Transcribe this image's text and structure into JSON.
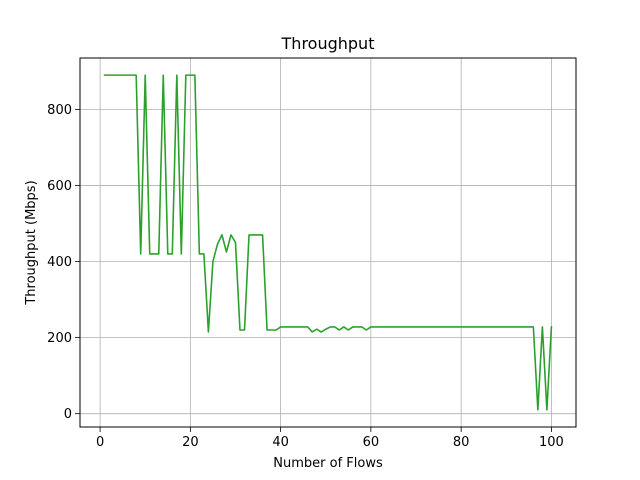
{
  "chart_data": {
    "type": "line",
    "title": "Throughput",
    "xlabel": "Number of Flows",
    "ylabel": "Throughput (Mbps)",
    "xlim": [
      -4.45,
      105.45
    ],
    "ylim": [
      -35,
      935
    ],
    "xticks": [
      0,
      20,
      40,
      60,
      80,
      100
    ],
    "yticks": [
      0,
      200,
      400,
      600,
      800
    ],
    "grid": true,
    "legend": "none",
    "series": [
      {
        "color": "#2ca02c",
        "x": [
          1,
          2,
          3,
          4,
          5,
          6,
          7,
          8,
          9,
          10,
          11,
          12,
          13,
          14,
          15,
          16,
          17,
          18,
          19,
          20,
          21,
          22,
          23,
          24,
          25,
          26,
          27,
          28,
          29,
          30,
          31,
          32,
          33,
          34,
          35,
          36,
          37,
          38,
          39,
          40,
          41,
          42,
          43,
          44,
          45,
          46,
          47,
          48,
          49,
          50,
          51,
          52,
          53,
          54,
          55,
          56,
          57,
          58,
          59,
          60,
          61,
          62,
          63,
          64,
          65,
          66,
          67,
          68,
          69,
          70,
          71,
          72,
          73,
          74,
          75,
          76,
          77,
          78,
          79,
          80,
          81,
          82,
          83,
          84,
          85,
          86,
          87,
          88,
          89,
          90,
          91,
          92,
          93,
          94,
          95,
          96,
          97,
          98,
          99,
          100
        ],
        "values": [
          890,
          890,
          890,
          890,
          890,
          890,
          890,
          890,
          420,
          890,
          420,
          420,
          420,
          890,
          420,
          420,
          890,
          420,
          890,
          890,
          890,
          420,
          420,
          215,
          400,
          445,
          470,
          425,
          470,
          450,
          220,
          220,
          470,
          470,
          470,
          470,
          220,
          220,
          220,
          228,
          228,
          228,
          228,
          228,
          228,
          228,
          215,
          222,
          215,
          222,
          228,
          228,
          220,
          228,
          220,
          228,
          228,
          228,
          220,
          228,
          228,
          228,
          228,
          228,
          228,
          228,
          228,
          228,
          228,
          228,
          228,
          228,
          228,
          228,
          228,
          228,
          228,
          228,
          228,
          228,
          228,
          228,
          228,
          228,
          228,
          228,
          228,
          228,
          228,
          228,
          228,
          228,
          228,
          228,
          228,
          228,
          10,
          228,
          10,
          228
        ]
      }
    ]
  }
}
